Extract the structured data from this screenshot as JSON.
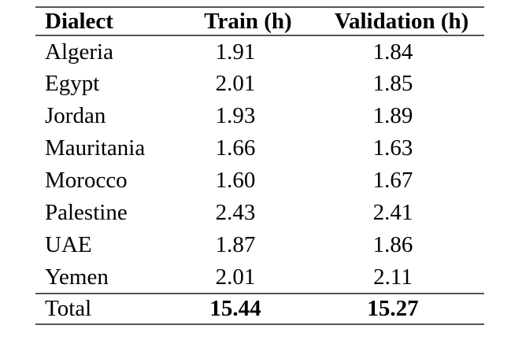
{
  "colors": {
    "background": "#ffffff",
    "text": "#000000",
    "rule": "#555555"
  },
  "chart_data": {
    "type": "table",
    "columns": [
      "Dialect",
      "Train (h)",
      "Validation (h)"
    ],
    "rows": [
      {
        "dialect": "Algeria",
        "train": "1.91",
        "validation": "1.84"
      },
      {
        "dialect": "Egypt",
        "train": "2.01",
        "validation": "1.85"
      },
      {
        "dialect": "Jordan",
        "train": "1.93",
        "validation": "1.89"
      },
      {
        "dialect": "Mauritania",
        "train": "1.66",
        "validation": "1.63"
      },
      {
        "dialect": "Morocco",
        "train": "1.60",
        "validation": "1.67"
      },
      {
        "dialect": "Palestine",
        "train": "2.43",
        "validation": "2.41"
      },
      {
        "dialect": "UAE",
        "train": "1.87",
        "validation": "1.86"
      },
      {
        "dialect": "Yemen",
        "train": "2.01",
        "validation": "2.11"
      }
    ],
    "total": {
      "label": "Total",
      "train": "15.44",
      "validation": "15.27"
    }
  }
}
